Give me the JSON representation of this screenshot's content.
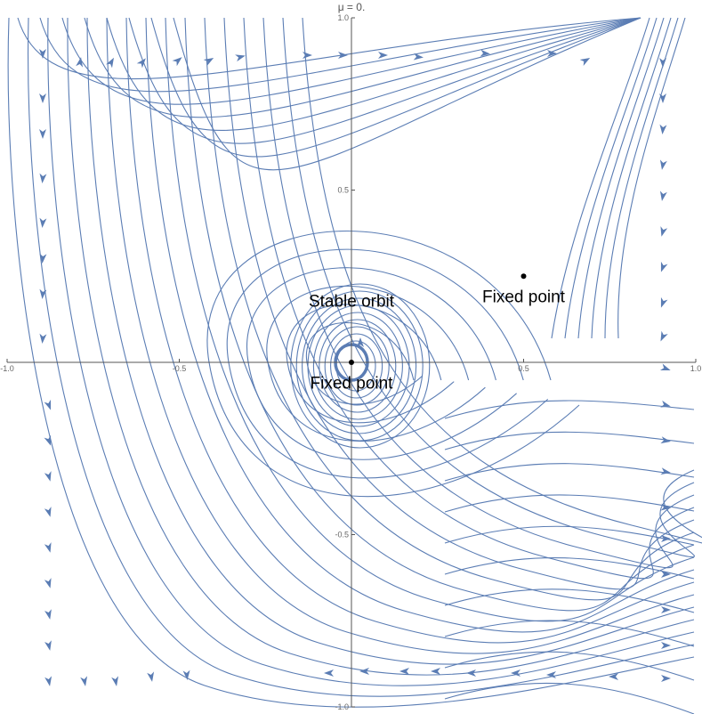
{
  "chart_data": {
    "type": "streamplot",
    "title": "μ = 0.",
    "xlim": [
      -1.0,
      1.0
    ],
    "ylim": [
      -1.0,
      1.0
    ],
    "x_ticks": [
      -1.0,
      -0.5,
      0.5,
      1.0
    ],
    "x_tick_labels": [
      "-1.0",
      "-0.5",
      "0.5",
      "1.0"
    ],
    "y_ticks": [
      1.0,
      0.5,
      -0.5,
      -1.0
    ],
    "y_tick_labels": [
      "1.0",
      "0.5",
      "-0.5",
      "-1.0"
    ],
    "grid": false,
    "colors": {
      "stream": "#5b7db4",
      "axis": "#555555",
      "point": "#000000"
    },
    "points": [
      {
        "label": "Fixed point",
        "x": 0.0,
        "y": 0.0
      },
      {
        "label": "Fixed point",
        "x": 0.5,
        "y": 0.25
      }
    ],
    "annotations": [
      {
        "text": "Stable orbit",
        "x": 0.0,
        "y": 0.1
      },
      {
        "text": "Fixed point",
        "x": 0.0,
        "y": -0.05
      },
      {
        "text": "Fixed point",
        "x": 0.5,
        "y": 0.2
      }
    ]
  }
}
